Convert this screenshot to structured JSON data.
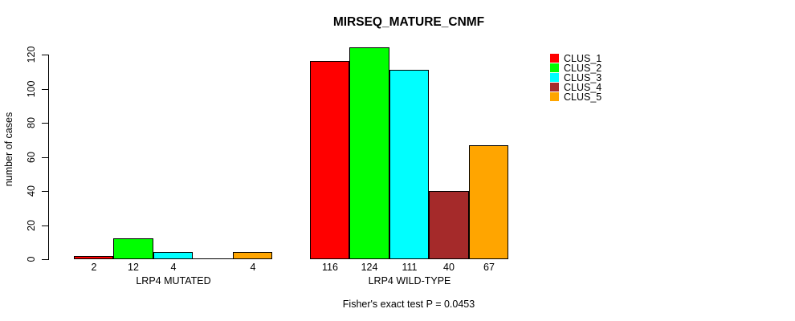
{
  "chart_data": {
    "type": "bar",
    "title": "MIRSEQ_MATURE_CNMF",
    "xlabel": "",
    "ylabel": "number of cases",
    "footer": "Fisher's exact test P = 0.0453",
    "ylim": [
      0,
      120
    ],
    "yticks": [
      "0",
      "20",
      "40",
      "60",
      "80",
      "100",
      "120"
    ],
    "grid": false,
    "legend_position": "top-right",
    "categories": [
      "LRP4 MUTATED",
      "LRP4 WILD-TYPE"
    ],
    "series": [
      {
        "name": "CLUS_1",
        "color": "#FF0000",
        "values": [
          2,
          116
        ]
      },
      {
        "name": "CLUS_2",
        "color": "#00FF00",
        "values": [
          12,
          124
        ]
      },
      {
        "name": "CLUS_3",
        "color": "#00FFFF",
        "values": [
          4,
          111
        ]
      },
      {
        "name": "CLUS_4",
        "color": "#A52A2A",
        "values": [
          0,
          40
        ]
      },
      {
        "name": "CLUS_5",
        "color": "#FFA500",
        "values": [
          4,
          67
        ]
      }
    ],
    "shown_bar_labels": [
      [
        "2",
        "12",
        "4",
        "",
        "4"
      ],
      [
        "116",
        "124",
        "111",
        "40",
        "67"
      ]
    ],
    "colors": {
      "background": "#FFFFFF",
      "axis": "#000000",
      "text": "#000000"
    }
  }
}
